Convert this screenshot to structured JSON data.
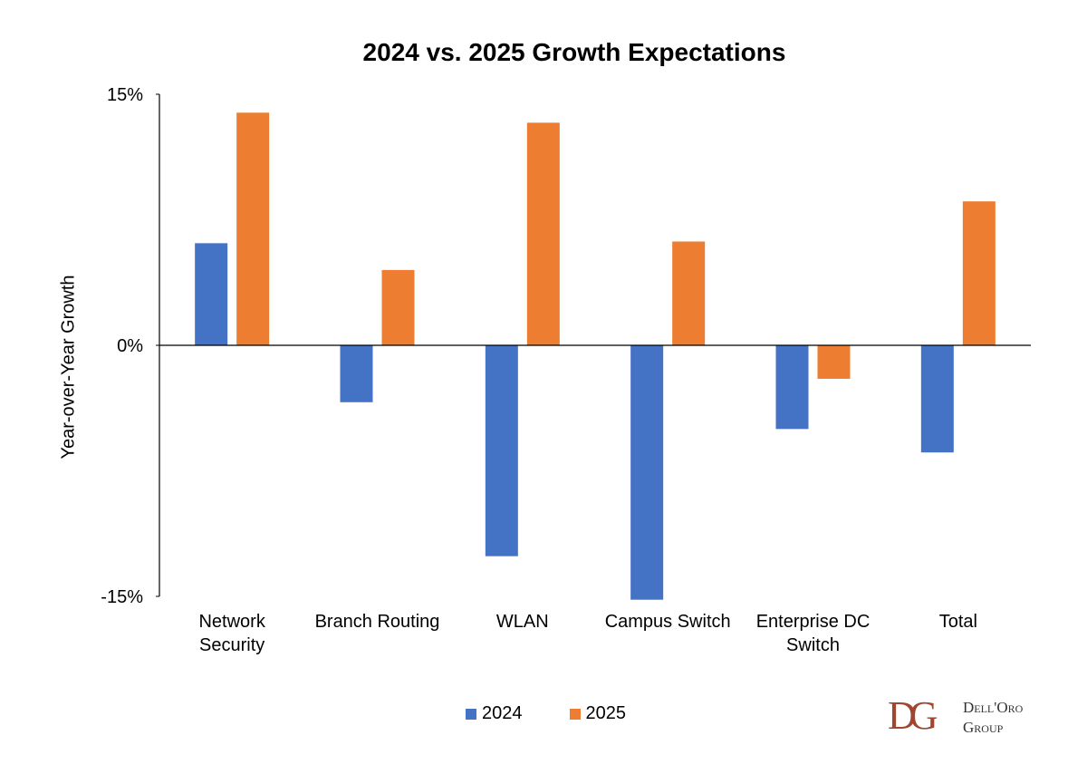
{
  "chart_data": {
    "type": "bar",
    "title": "2024 vs. 2025 Growth Expectations",
    "xlabel": "",
    "ylabel": "Year-over-Year Growth",
    "ylim": [
      -15,
      15
    ],
    "yticks": [
      "15%",
      "0%",
      "-15%"
    ],
    "categories": [
      [
        "Network",
        "Security"
      ],
      [
        "Branch Routing"
      ],
      [
        "WLAN"
      ],
      [
        "Campus Switch"
      ],
      [
        "Enterprise DC",
        "Switch"
      ],
      [
        "Total"
      ]
    ],
    "series": [
      {
        "name": "2024",
        "color": "#4472c4",
        "values": [
          6.1,
          -3.4,
          -12.6,
          -15.2,
          -5.0,
          -6.4
        ]
      },
      {
        "name": "2025",
        "color": "#ed7d31",
        "values": [
          13.9,
          4.5,
          13.3,
          6.2,
          -2.0,
          8.6
        ]
      }
    ],
    "legend": "bottom",
    "grid": false
  },
  "logo": {
    "mark": "DG",
    "line1": "Dell'Oro",
    "line2": "Group"
  }
}
